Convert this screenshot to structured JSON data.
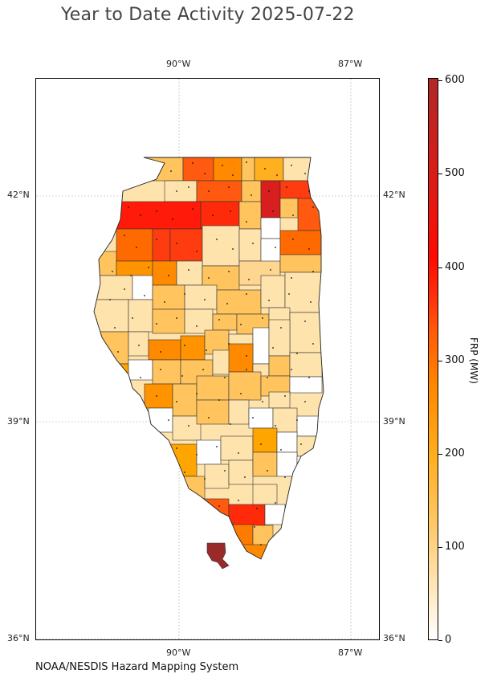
{
  "title": "Year to Date Activity 2025-07-22",
  "credit": "NOAA/NESDIS Hazard Mapping System",
  "map": {
    "region": "Illinois",
    "lon_ticks": [
      "90°W",
      "87°W"
    ],
    "lat_ticks": [
      "42°N",
      "39°N",
      "36°N"
    ],
    "fire_points_color": "#111111",
    "county_outline_color": "#333333"
  },
  "colorbar": {
    "label": "FRP (MW)",
    "ticks": [
      "600",
      "500",
      "400",
      "300",
      "200",
      "100",
      "0"
    ],
    "range": [
      0,
      600
    ],
    "colors": {
      "low": "#ffffff",
      "light": "#ffe9c4",
      "mid_light": "#ffc96a",
      "orange": "#ffad1e",
      "dark_orange": "#ff8800",
      "red_orange": "#ff5a0a",
      "red": "#ff0a00",
      "max": "#b02828"
    }
  }
}
